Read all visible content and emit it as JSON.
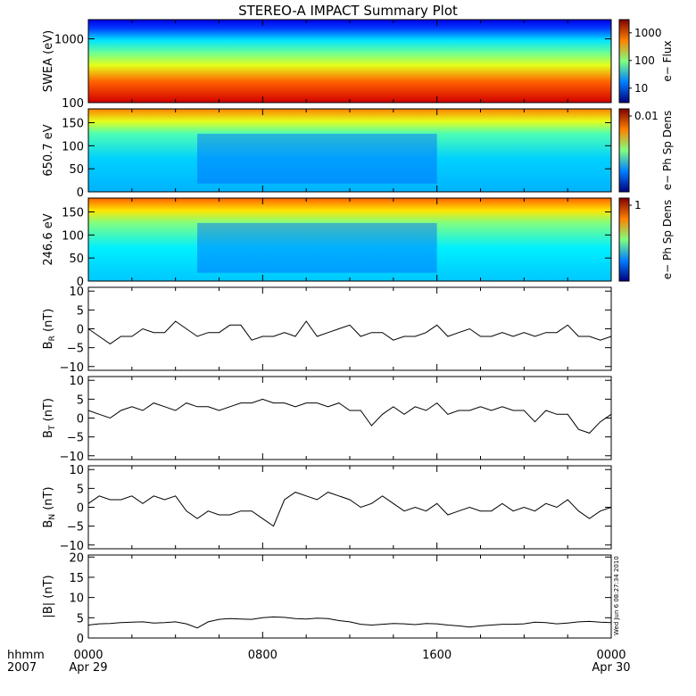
{
  "title": "STEREO-A IMPACT Summary Plot",
  "timestamp": "Wed Jun  6 08:27:34 2010",
  "time_axis": {
    "unit_label": "hhmm",
    "year_label": "2007",
    "ticks": [
      {
        "hhmm": "0000",
        "date": "Apr 29",
        "hour": 0
      },
      {
        "hhmm": "0800",
        "date": "",
        "hour": 8
      },
      {
        "hhmm": "1600",
        "date": "",
        "hour": 16
      },
      {
        "hhmm": "0000",
        "date": "Apr 30",
        "hour": 24
      }
    ]
  },
  "colors": {
    "line": "#000000",
    "frame": "#000000",
    "background": "#ffffff"
  },
  "chart_data": [
    {
      "type": "heatmap",
      "ylabel": "SWEA (eV)",
      "yscale": "log",
      "ylim": [
        100,
        2000
      ],
      "yticks": [
        "1000",
        "100"
      ],
      "ytick_values": [
        1000,
        100
      ],
      "colorbar_label": "e− Flux",
      "colorbar_scale": "log",
      "colorbar_range": [
        3,
        3000
      ],
      "colorbar_ticks": [
        "1000",
        "100",
        "10"
      ],
      "colorbar_tick_values": [
        1000,
        100,
        10
      ],
      "levels_hint": "flux decreases with energy: ~3000 at 100 eV, ~100 near 500 eV, ~3 near 2000 eV"
    },
    {
      "type": "heatmap",
      "ylabel": "650.7 eV",
      "ylim": [
        0,
        180
      ],
      "yticks": [
        "150",
        "100",
        "50",
        "0"
      ],
      "ytick_values": [
        150,
        100,
        50,
        0
      ],
      "colorbar_label": "e− Ph Sp Dens",
      "colorbar_ticks": [
        "0.01"
      ],
      "colorbar_tick_values": [
        0.01
      ]
    },
    {
      "type": "heatmap",
      "ylabel": "246.6 eV",
      "ylim": [
        0,
        180
      ],
      "yticks": [
        "150",
        "100",
        "50",
        "0"
      ],
      "ytick_values": [
        150,
        100,
        50,
        0
      ],
      "colorbar_label": "e− Ph Sp Dens",
      "colorbar_ticks": [
        "1"
      ],
      "colorbar_tick_values": [
        1
      ]
    },
    {
      "type": "line",
      "ylabel_main": "B",
      "ylabel_sub": "R",
      "ylabel_unit": "(nT)",
      "ylim": [
        -11,
        11
      ],
      "yticks": [
        "10",
        "5",
        "0",
        "−5",
        "−10"
      ],
      "ytick_values": [
        10,
        5,
        0,
        -5,
        -10
      ],
      "x_hours": [
        0,
        0.5,
        1,
        1.5,
        2,
        2.5,
        3,
        3.5,
        4,
        4.5,
        5,
        5.5,
        6,
        6.5,
        7,
        7.5,
        8,
        8.5,
        9,
        9.5,
        10,
        10.5,
        11,
        11.5,
        12,
        12.5,
        13,
        13.5,
        14,
        14.5,
        15,
        15.5,
        16,
        16.5,
        17,
        17.5,
        18,
        18.5,
        19,
        19.5,
        20,
        20.5,
        21,
        21.5,
        22,
        22.5,
        23,
        23.5,
        24
      ],
      "values": [
        0,
        -2,
        -4,
        -2,
        -2,
        0,
        -1,
        -1,
        2,
        0,
        -2,
        -1,
        -1,
        1,
        1,
        -3,
        -2,
        -2,
        -1,
        -2,
        2,
        -2,
        -1,
        0,
        1,
        -2,
        -1,
        -1,
        -3,
        -2,
        -2,
        -1,
        1,
        -2,
        -1,
        0,
        -2,
        -2,
        -1,
        -2,
        -1,
        -2,
        -1,
        -1,
        1,
        -2,
        -2,
        -3,
        -2
      ]
    },
    {
      "type": "line",
      "ylabel_main": "B",
      "ylabel_sub": "T",
      "ylabel_unit": "(nT)",
      "ylim": [
        -11,
        11
      ],
      "yticks": [
        "10",
        "5",
        "0",
        "−5",
        "−10"
      ],
      "ytick_values": [
        10,
        5,
        0,
        -5,
        -10
      ],
      "x_hours": [
        0,
        0.5,
        1,
        1.5,
        2,
        2.5,
        3,
        3.5,
        4,
        4.5,
        5,
        5.5,
        6,
        6.5,
        7,
        7.5,
        8,
        8.5,
        9,
        9.5,
        10,
        10.5,
        11,
        11.5,
        12,
        12.5,
        13,
        13.5,
        14,
        14.5,
        15,
        15.5,
        16,
        16.5,
        17,
        17.5,
        18,
        18.5,
        19,
        19.5,
        20,
        20.5,
        21,
        21.5,
        22,
        22.5,
        23,
        23.5,
        24
      ],
      "values": [
        2,
        1,
        0,
        2,
        3,
        2,
        4,
        3,
        2,
        4,
        3,
        3,
        2,
        3,
        4,
        4,
        5,
        4,
        4,
        3,
        4,
        4,
        3,
        4,
        2,
        2,
        -2,
        1,
        3,
        1,
        3,
        2,
        4,
        1,
        2,
        2,
        3,
        2,
        3,
        2,
        2,
        -1,
        2,
        1,
        1,
        -3,
        -4,
        -1,
        1
      ]
    },
    {
      "type": "line",
      "ylabel_main": "B",
      "ylabel_sub": "N",
      "ylabel_unit": "(nT)",
      "ylim": [
        -11,
        11
      ],
      "yticks": [
        "10",
        "5",
        "0",
        "−5",
        "−10"
      ],
      "ytick_values": [
        10,
        5,
        0,
        -5,
        -10
      ],
      "x_hours": [
        0,
        0.5,
        1,
        1.5,
        2,
        2.5,
        3,
        3.5,
        4,
        4.5,
        5,
        5.5,
        6,
        6.5,
        7,
        7.5,
        8,
        8.5,
        9,
        9.5,
        10,
        10.5,
        11,
        11.5,
        12,
        12.5,
        13,
        13.5,
        14,
        14.5,
        15,
        15.5,
        16,
        16.5,
        17,
        17.5,
        18,
        18.5,
        19,
        19.5,
        20,
        20.5,
        21,
        21.5,
        22,
        22.5,
        23,
        23.5,
        24
      ],
      "values": [
        1,
        3,
        2,
        2,
        3,
        1,
        3,
        2,
        3,
        -1,
        -3,
        -1,
        -2,
        -2,
        -1,
        -1,
        -3,
        -5,
        2,
        4,
        3,
        2,
        4,
        3,
        2,
        0,
        1,
        3,
        1,
        -1,
        0,
        -1,
        1,
        -2,
        -1,
        0,
        -1,
        -1,
        1,
        -1,
        0,
        -1,
        1,
        0,
        2,
        -1,
        -3,
        -1,
        0
      ]
    },
    {
      "type": "line",
      "ylabel": "|B| (nT)",
      "ylim": [
        0,
        20.5
      ],
      "yticks": [
        "20",
        "15",
        "10",
        "5",
        "0"
      ],
      "ytick_values": [
        20,
        15,
        10,
        5,
        0
      ],
      "x_hours": [
        0,
        0.5,
        1,
        1.5,
        2,
        2.5,
        3,
        3.5,
        4,
        4.5,
        5,
        5.5,
        6,
        6.5,
        7,
        7.5,
        8,
        8.5,
        9,
        9.5,
        10,
        10.5,
        11,
        11.5,
        12,
        12.5,
        13,
        13.5,
        14,
        14.5,
        15,
        15.5,
        16,
        16.5,
        17,
        17.5,
        18,
        18.5,
        19,
        19.5,
        20,
        20.5,
        21,
        21.5,
        22,
        22.5,
        23,
        23.5,
        24
      ],
      "values": [
        3.2,
        3.5,
        3.6,
        3.8,
        3.9,
        4.0,
        3.7,
        3.8,
        4.0,
        3.5,
        2.5,
        4.0,
        4.6,
        4.8,
        4.7,
        4.6,
        5.0,
        5.2,
        5.1,
        4.8,
        4.7,
        4.9,
        4.8,
        4.3,
        4.0,
        3.4,
        3.2,
        3.4,
        3.6,
        3.5,
        3.3,
        3.6,
        3.5,
        3.2,
        3.0,
        2.7,
        3.0,
        3.2,
        3.4,
        3.4,
        3.5,
        3.9,
        3.8,
        3.5,
        3.7,
        4.0,
        4.1,
        3.9,
        3.8
      ]
    }
  ]
}
